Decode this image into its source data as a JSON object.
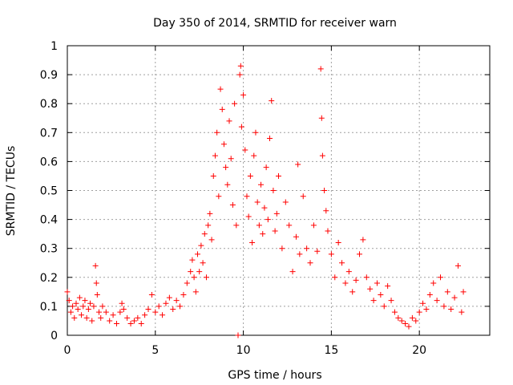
{
  "chart_data": {
    "type": "scatter",
    "title": "Day 350 of 2014, SRMTID for receiver warn",
    "xlabel": "GPS time / hours",
    "ylabel": "SRMTID / TECUs",
    "xlim": [
      0,
      24
    ],
    "ylim": [
      0,
      1
    ],
    "xticks": [
      0,
      5,
      10,
      15,
      20
    ],
    "xtick_labels": [
      "0",
      "5",
      "10",
      "15",
      "20"
    ],
    "yticks": [
      0,
      0.1,
      0.2,
      0.3,
      0.4,
      0.5,
      0.6,
      0.7,
      0.8,
      0.9,
      1
    ],
    "ytick_labels": [
      "0",
      "0.1",
      "0.2",
      "0.3",
      "0.4",
      "0.5",
      "0.6",
      "0.7",
      "0.8",
      "0.9",
      "1"
    ],
    "grid": true,
    "marker": "+",
    "marker_color": "#ff0000",
    "series": [
      {
        "name": "SRMTID",
        "points": [
          [
            0.0,
            0.15
          ],
          [
            0.1,
            0.12
          ],
          [
            0.2,
            0.08
          ],
          [
            0.3,
            0.1
          ],
          [
            0.4,
            0.06
          ],
          [
            0.5,
            0.11
          ],
          [
            0.6,
            0.09
          ],
          [
            0.7,
            0.13
          ],
          [
            0.8,
            0.07
          ],
          [
            0.9,
            0.1
          ],
          [
            1.0,
            0.12
          ],
          [
            1.1,
            0.06
          ],
          [
            1.2,
            0.09
          ],
          [
            1.3,
            0.11
          ],
          [
            1.4,
            0.05
          ],
          [
            1.5,
            0.1
          ],
          [
            1.6,
            0.24
          ],
          [
            1.65,
            0.18
          ],
          [
            1.7,
            0.14
          ],
          [
            1.8,
            0.08
          ],
          [
            1.9,
            0.06
          ],
          [
            2.0,
            0.1
          ],
          [
            2.2,
            0.08
          ],
          [
            2.4,
            0.05
          ],
          [
            2.6,
            0.07
          ],
          [
            2.8,
            0.04
          ],
          [
            3.0,
            0.08
          ],
          [
            3.1,
            0.11
          ],
          [
            3.2,
            0.09
          ],
          [
            3.4,
            0.06
          ],
          [
            3.6,
            0.04
          ],
          [
            3.8,
            0.05
          ],
          [
            4.0,
            0.06
          ],
          [
            4.2,
            0.04
          ],
          [
            4.4,
            0.07
          ],
          [
            4.6,
            0.09
          ],
          [
            4.8,
            0.14
          ],
          [
            5.0,
            0.08
          ],
          [
            5.2,
            0.1
          ],
          [
            5.4,
            0.07
          ],
          [
            5.6,
            0.11
          ],
          [
            5.8,
            0.13
          ],
          [
            6.0,
            0.09
          ],
          [
            6.2,
            0.12
          ],
          [
            6.4,
            0.1
          ],
          [
            6.6,
            0.14
          ],
          [
            6.8,
            0.18
          ],
          [
            7.0,
            0.22
          ],
          [
            7.1,
            0.26
          ],
          [
            7.2,
            0.2
          ],
          [
            7.3,
            0.15
          ],
          [
            7.4,
            0.28
          ],
          [
            7.5,
            0.22
          ],
          [
            7.6,
            0.31
          ],
          [
            7.7,
            0.25
          ],
          [
            7.8,
            0.35
          ],
          [
            7.9,
            0.2
          ],
          [
            8.0,
            0.38
          ],
          [
            8.1,
            0.42
          ],
          [
            8.2,
            0.33
          ],
          [
            8.3,
            0.55
          ],
          [
            8.4,
            0.62
          ],
          [
            8.5,
            0.7
          ],
          [
            8.6,
            0.48
          ],
          [
            8.7,
            0.85
          ],
          [
            8.8,
            0.78
          ],
          [
            8.9,
            0.66
          ],
          [
            9.0,
            0.58
          ],
          [
            9.1,
            0.52
          ],
          [
            9.2,
            0.74
          ],
          [
            9.3,
            0.61
          ],
          [
            9.4,
            0.45
          ],
          [
            9.5,
            0.8
          ],
          [
            9.6,
            0.38
          ],
          [
            9.7,
            0.0
          ],
          [
            9.8,
            0.9
          ],
          [
            9.85,
            0.93
          ],
          [
            9.9,
            0.72
          ],
          [
            10.0,
            0.83
          ],
          [
            10.1,
            0.64
          ],
          [
            10.2,
            0.48
          ],
          [
            10.3,
            0.41
          ],
          [
            10.4,
            0.55
          ],
          [
            10.5,
            0.32
          ],
          [
            10.6,
            0.62
          ],
          [
            10.7,
            0.7
          ],
          [
            10.8,
            0.46
          ],
          [
            10.9,
            0.38
          ],
          [
            11.0,
            0.52
          ],
          [
            11.1,
            0.35
          ],
          [
            11.2,
            0.44
          ],
          [
            11.3,
            0.58
          ],
          [
            11.4,
            0.4
          ],
          [
            11.5,
            0.68
          ],
          [
            11.6,
            0.81
          ],
          [
            11.7,
            0.5
          ],
          [
            11.8,
            0.36
          ],
          [
            11.9,
            0.42
          ],
          [
            12.0,
            0.55
          ],
          [
            12.2,
            0.3
          ],
          [
            12.4,
            0.46
          ],
          [
            12.6,
            0.38
          ],
          [
            12.8,
            0.22
          ],
          [
            13.0,
            0.34
          ],
          [
            13.1,
            0.59
          ],
          [
            13.2,
            0.28
          ],
          [
            13.4,
            0.48
          ],
          [
            13.6,
            0.3
          ],
          [
            13.8,
            0.25
          ],
          [
            14.0,
            0.38
          ],
          [
            14.2,
            0.29
          ],
          [
            14.4,
            0.92
          ],
          [
            14.45,
            0.75
          ],
          [
            14.5,
            0.62
          ],
          [
            14.6,
            0.5
          ],
          [
            14.7,
            0.43
          ],
          [
            14.8,
            0.36
          ],
          [
            15.0,
            0.28
          ],
          [
            15.2,
            0.2
          ],
          [
            15.4,
            0.32
          ],
          [
            15.6,
            0.25
          ],
          [
            15.8,
            0.18
          ],
          [
            16.0,
            0.22
          ],
          [
            16.2,
            0.15
          ],
          [
            16.4,
            0.19
          ],
          [
            16.6,
            0.28
          ],
          [
            16.8,
            0.33
          ],
          [
            17.0,
            0.2
          ],
          [
            17.2,
            0.16
          ],
          [
            17.4,
            0.12
          ],
          [
            17.6,
            0.18
          ],
          [
            17.8,
            0.14
          ],
          [
            18.0,
            0.1
          ],
          [
            18.2,
            0.17
          ],
          [
            18.4,
            0.12
          ],
          [
            18.6,
            0.08
          ],
          [
            18.8,
            0.06
          ],
          [
            19.0,
            0.05
          ],
          [
            19.2,
            0.04
          ],
          [
            19.4,
            0.03
          ],
          [
            19.6,
            0.06
          ],
          [
            19.8,
            0.05
          ],
          [
            20.0,
            0.08
          ],
          [
            20.2,
            0.11
          ],
          [
            20.4,
            0.09
          ],
          [
            20.6,
            0.14
          ],
          [
            20.8,
            0.18
          ],
          [
            21.0,
            0.12
          ],
          [
            21.2,
            0.2
          ],
          [
            21.4,
            0.1
          ],
          [
            21.6,
            0.15
          ],
          [
            21.8,
            0.09
          ],
          [
            22.0,
            0.13
          ],
          [
            22.2,
            0.24
          ],
          [
            22.4,
            0.08
          ],
          [
            22.5,
            0.15
          ]
        ]
      }
    ]
  }
}
